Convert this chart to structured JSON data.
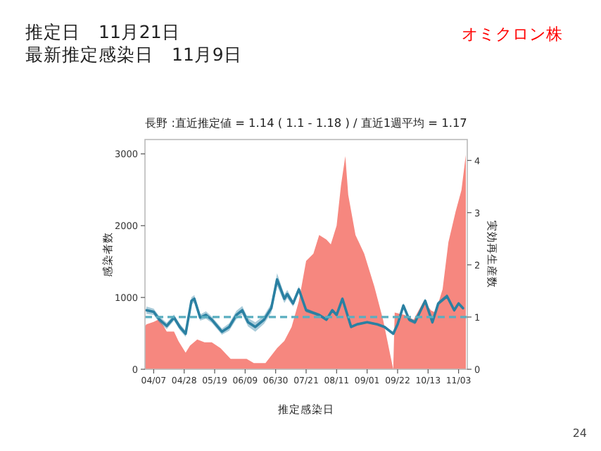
{
  "chart_data": {
    "type": "area",
    "title": "推定日　11月21日",
    "subtitle": "最新推定感染日　11月9日",
    "annotations": [
      "オミクロン株",
      "長野 :直近推定値 = 1.14 ( 1.1 - 1.18 ) / 直近1週平均 = 1.17",
      "24"
    ],
    "xlabel": "推定感染日",
    "ylabel": "感染者数",
    "y2label": "実効再生産数",
    "xlim": [
      "--04-01",
      "--11-09"
    ],
    "xticks": [
      {
        "value": "--04-07",
        "label": "04/07"
      },
      {
        "value": "--04-28",
        "label": "04/28"
      },
      {
        "value": "--05-19",
        "label": "05/19"
      },
      {
        "value": "--06-09",
        "label": "06/09"
      },
      {
        "value": "--06-30",
        "label": "06/30"
      },
      {
        "value": "--07-21",
        "label": "07/21"
      },
      {
        "value": "--08-11",
        "label": "08/11"
      },
      {
        "value": "--09-01",
        "label": "09/01"
      },
      {
        "value": "--09-22",
        "label": "09/22"
      },
      {
        "value": "--10-13",
        "label": "10/13"
      },
      {
        "value": "--11-03",
        "label": "11/03"
      }
    ],
    "ylim": [
      0,
      3200
    ],
    "yticks": [
      0,
      1000,
      2000,
      3000
    ],
    "y2lim": [
      0,
      4.4
    ],
    "y2ticks": [
      0,
      1,
      2,
      3,
      4
    ],
    "grid": false,
    "ref_lines": [
      {
        "axis": "y2",
        "value": 1,
        "color": "#5aaec0",
        "line_style": "dashed"
      }
    ],
    "series": [
      {
        "color": "#f6877f",
        "x": [
          "--04-01",
          "--04-02",
          "--04-07",
          "--04-11",
          "--04-16",
          "--04-21",
          "--04-24",
          "--04-29",
          "--05-02",
          "--05-07",
          "--05-12",
          "--05-17",
          "--05-23",
          "--05-30",
          "--06-05",
          "--06-10",
          "--06-15",
          "--06-23",
          "--06-26",
          "--07-01",
          "--07-06",
          "--07-11",
          "--07-16",
          "--07-21",
          "--07-26",
          "--07-30",
          "--08-04",
          "--08-07",
          "--08-11",
          "--08-14",
          "--08-17",
          "--08-19",
          "--08-24",
          "--08-30",
          "--09-06",
          "--09-12",
          "--09-17",
          "--09-19",
          "--09-20",
          "--09-27",
          "--10-03",
          "--10-10",
          "--10-15",
          "--10-18",
          "--10-23",
          "--10-27",
          "--11-01",
          "--11-05",
          "--11-08"
        ],
        "values": [
          600,
          625,
          660,
          700,
          525,
          525,
          395,
          230,
          330,
          415,
          375,
          375,
          295,
          145,
          145,
          145,
          85,
          85,
          165,
          295,
          395,
          590,
          950,
          1510,
          1610,
          1870,
          1805,
          1740,
          2000,
          2560,
          2970,
          2430,
          1870,
          1610,
          1150,
          690,
          195,
          0,
          790,
          755,
          690,
          950,
          820,
          790,
          1115,
          1770,
          2200,
          2495,
          2990
        ]
      },
      {
        "type": "line",
        "axis": "y2",
        "color": "#2a80a2",
        "x": [
          "--04-02",
          "--04-07",
          "--04-11",
          "--04-16",
          "--04-21",
          "--04-25",
          "--04-29",
          "--05-03",
          "--05-05",
          "--05-09",
          "--05-13",
          "--05-17",
          "--05-24",
          "--05-29",
          "--06-03",
          "--06-07",
          "--06-11",
          "--06-16",
          "--06-22",
          "--06-27",
          "--07-01",
          "--07-06",
          "--07-08",
          "--07-12",
          "--07-16",
          "--07-21",
          "--07-26",
          "--07-30",
          "--08-04",
          "--08-08",
          "--08-11",
          "--08-15",
          "--08-21",
          "--08-25",
          "--09-01",
          "--09-08",
          "--09-13",
          "--09-19",
          "--09-22",
          "--09-26",
          "--09-30",
          "--10-04",
          "--10-11",
          "--10-16",
          "--10-20",
          "--10-26",
          "--10-31",
          "--11-03",
          "--11-06"
        ],
        "values": [
          1.13,
          1.1,
          0.95,
          0.83,
          0.99,
          0.81,
          0.68,
          1.31,
          1.35,
          0.99,
          1.04,
          0.95,
          0.72,
          0.81,
          1.04,
          1.13,
          0.9,
          0.81,
          0.95,
          1.17,
          1.72,
          1.35,
          1.44,
          1.26,
          1.53,
          1.13,
          1.08,
          1.04,
          0.95,
          1.13,
          1.04,
          1.35,
          0.81,
          0.86,
          0.9,
          0.86,
          0.81,
          0.68,
          0.86,
          1.22,
          0.95,
          0.9,
          1.31,
          0.9,
          1.26,
          1.4,
          1.13,
          1.26,
          1.17
        ],
        "lower": [
          1.06,
          1.04,
          0.89,
          0.77,
          0.93,
          0.75,
          0.62,
          1.24,
          1.28,
          0.93,
          0.97,
          0.89,
          0.66,
          0.74,
          0.96,
          1.05,
          0.82,
          0.72,
          0.87,
          1.08,
          1.6,
          1.27,
          1.36,
          1.2,
          1.47,
          1.09,
          1.05,
          1.01,
          0.92,
          1.1,
          1.02,
          1.31,
          0.79,
          0.84,
          0.88,
          0.84,
          0.79,
          0.65,
          0.82,
          1.17,
          0.91,
          0.86,
          1.26,
          0.86,
          1.22,
          1.36,
          1.1,
          1.23,
          1.14
        ],
        "upper": [
          1.2,
          1.16,
          1.01,
          0.89,
          1.05,
          0.87,
          0.74,
          1.38,
          1.42,
          1.05,
          1.11,
          1.01,
          0.78,
          0.88,
          1.12,
          1.21,
          0.98,
          0.9,
          1.03,
          1.26,
          1.84,
          1.43,
          1.52,
          1.32,
          1.59,
          1.17,
          1.11,
          1.07,
          0.98,
          1.16,
          1.06,
          1.39,
          0.83,
          0.88,
          0.92,
          0.88,
          0.83,
          0.71,
          0.9,
          1.27,
          0.99,
          0.94,
          1.36,
          0.94,
          1.3,
          1.44,
          1.16,
          1.29,
          1.2
        ]
      }
    ]
  }
}
